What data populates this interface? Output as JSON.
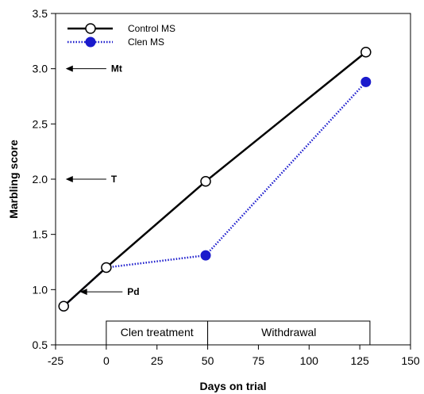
{
  "chart_data": {
    "type": "line",
    "xlabel": "Days on trial",
    "ylabel": "Marbling score",
    "xlim": [
      -25,
      150
    ],
    "ylim": [
      0.5,
      3.5
    ],
    "x_ticks": [
      "-25",
      "0",
      "25",
      "50",
      "75",
      "100",
      "125",
      "150"
    ],
    "y_ticks": [
      "0.5",
      "1.0",
      "1.5",
      "2.0",
      "2.5",
      "3.0",
      "3.5"
    ],
    "x_tick_values": [
      -25,
      0,
      25,
      50,
      75,
      100,
      125,
      150
    ],
    "y_tick_values": [
      0.5,
      1.0,
      1.5,
      2.0,
      2.5,
      3.0,
      3.5
    ],
    "grid": false,
    "legend_position": "top-left",
    "series": [
      {
        "name": "Control MS",
        "color": "#000000",
        "line_style": "solid",
        "marker": "open-circle",
        "x": [
          -21,
          0,
          49,
          128
        ],
        "y": [
          0.85,
          1.2,
          1.98,
          3.15
        ]
      },
      {
        "name": "Clen MS",
        "color": "#1a1acc",
        "line_style": "dotted",
        "marker": "filled-circle",
        "x": [
          -21,
          0,
          49,
          128
        ],
        "y": [
          0.85,
          1.2,
          1.31,
          2.88
        ]
      }
    ],
    "annotations": [
      {
        "label": "Mt",
        "y": 3.0,
        "arrow": "left"
      },
      {
        "label": "T",
        "y": 2.0,
        "arrow": "left"
      },
      {
        "label": "Pd",
        "y": 0.98,
        "arrow": "left"
      }
    ],
    "periods": [
      {
        "label": "Clen treatment",
        "x_start": 0,
        "x_end": 50
      },
      {
        "label": "Withdrawal",
        "x_start": 50,
        "x_end": 130
      }
    ]
  }
}
